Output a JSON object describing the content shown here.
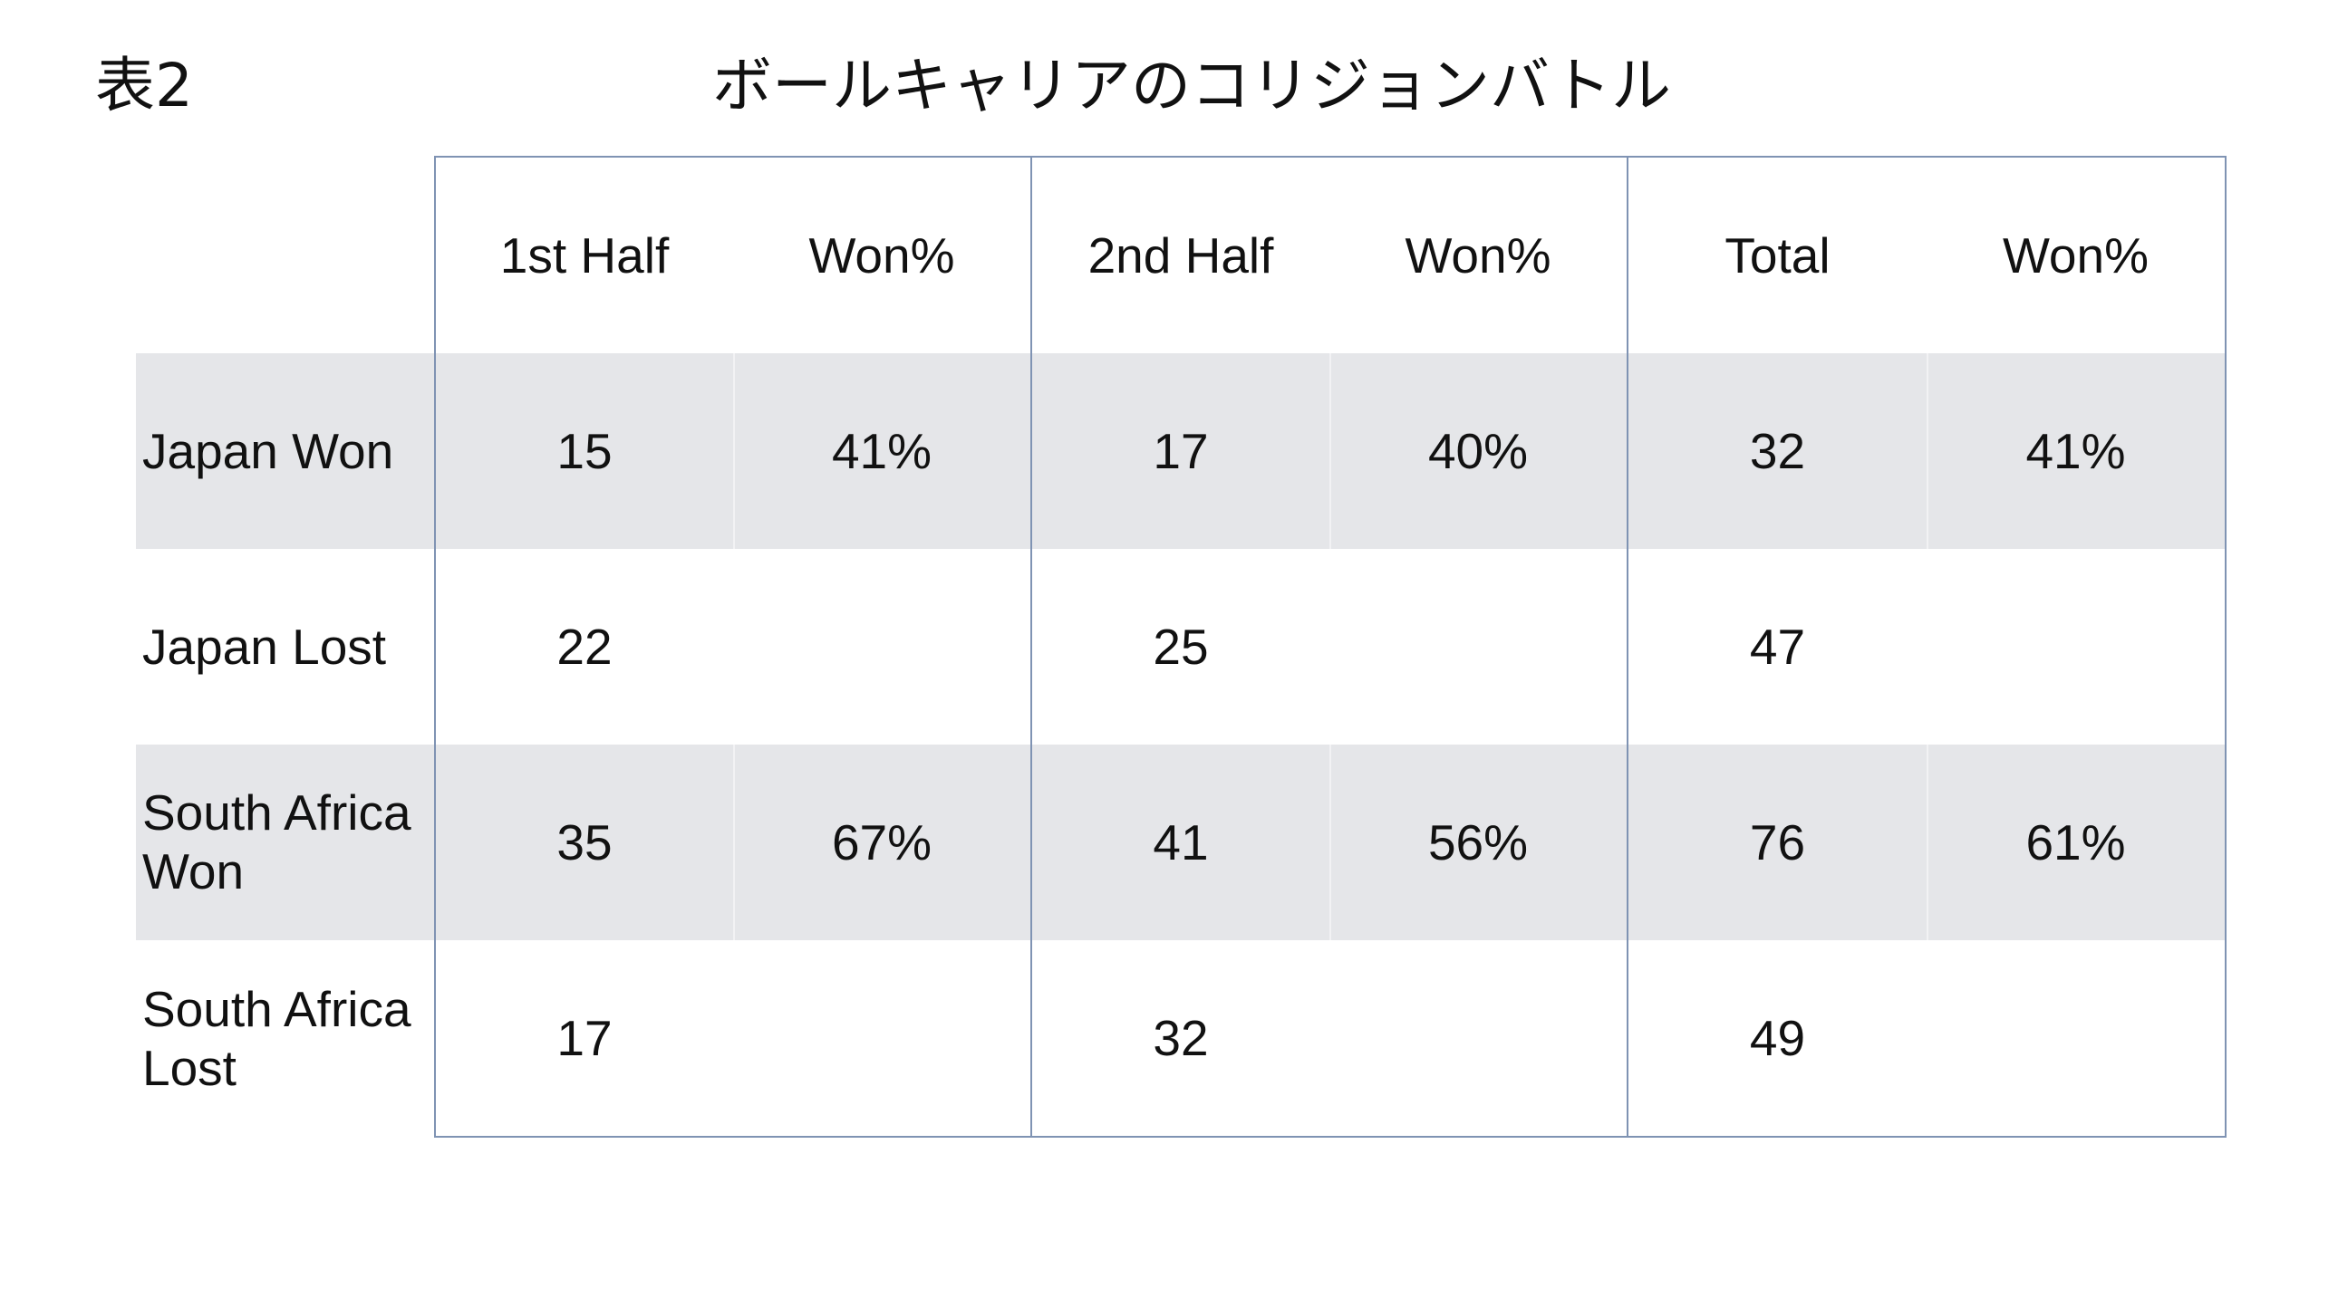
{
  "table_label": "表2",
  "title": "ボールキャリアのコリジョンバトル",
  "columns": [
    "",
    "1st Half",
    "Won%",
    "2nd Half",
    "Won%",
    "Total",
    "Won%"
  ],
  "rows": [
    {
      "label": "Japan Won",
      "cells": [
        "15",
        "41%",
        "17",
        "40%",
        "32",
        "41%"
      ]
    },
    {
      "label": "Japan Lost",
      "cells": [
        "22",
        "",
        "25",
        "",
        "47",
        ""
      ]
    },
    {
      "label": "South Africa Won",
      "cells": [
        "35",
        "67%",
        "41",
        "56%",
        "76",
        "61%"
      ]
    },
    {
      "label": "South Africa Lost",
      "cells": [
        "17",
        "",
        "32",
        "",
        "49",
        ""
      ]
    }
  ],
  "colors": {
    "shaded_row": "#e5e6e9",
    "grid_line": "#7f93b3",
    "text": "#111111"
  }
}
